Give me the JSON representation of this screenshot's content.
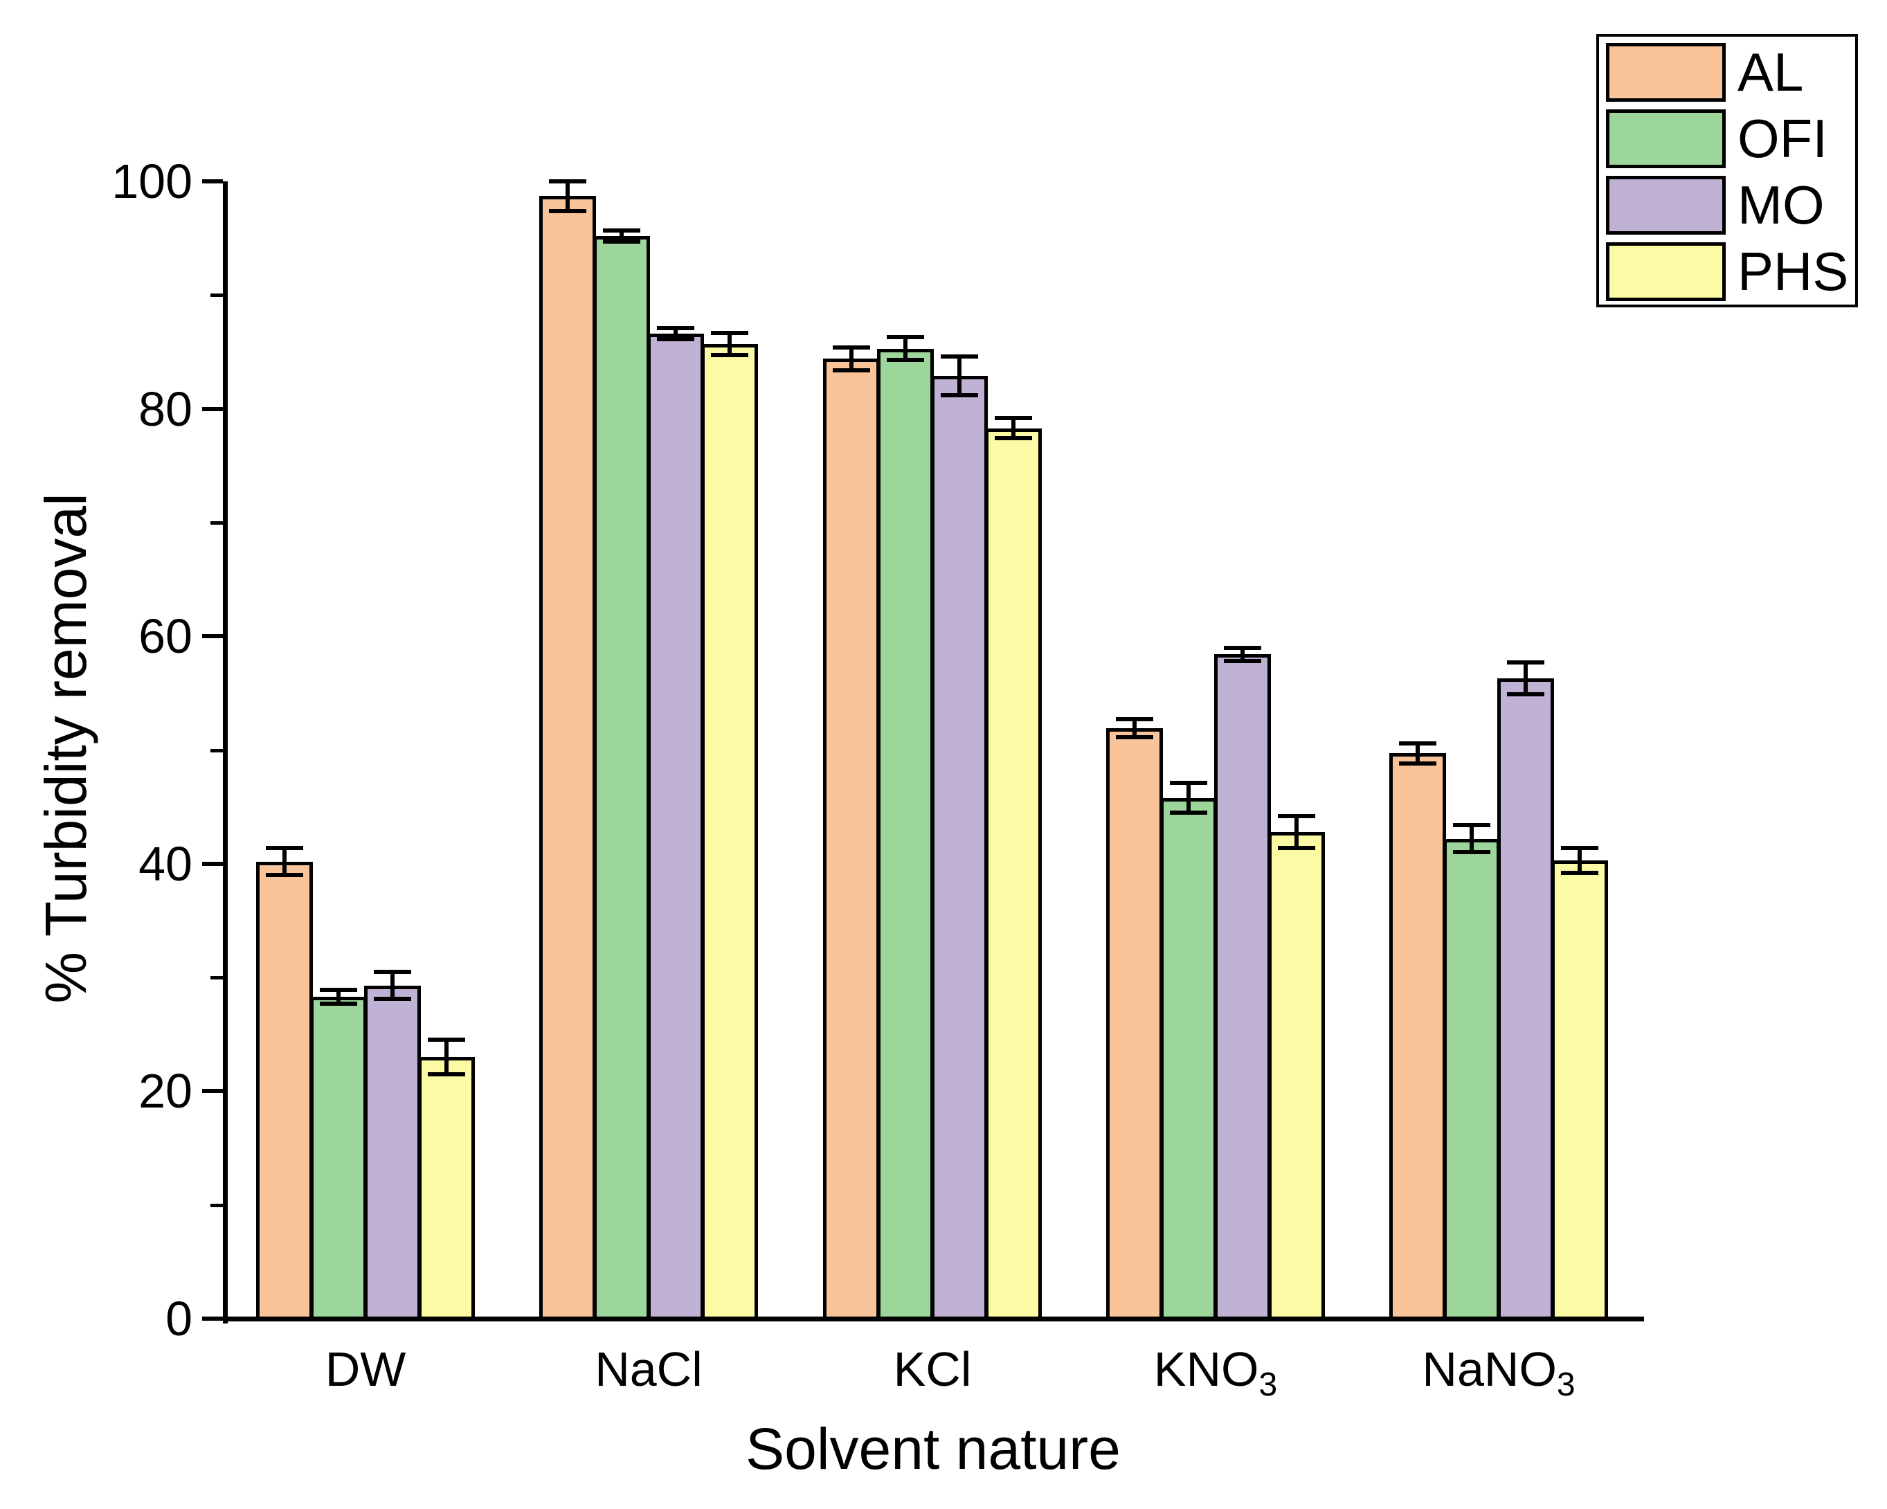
{
  "figure": {
    "background": "#FFFFFF",
    "text_color": "#000000"
  },
  "chart_data": {
    "type": "bar",
    "title": "",
    "xlabel": "Solvent nature",
    "ylabel": "% Turbidity removal",
    "ylim": [
      0,
      100
    ],
    "ytick_major": [
      0,
      20,
      40,
      60,
      80,
      100
    ],
    "ytick_minor": [
      10,
      30,
      50,
      70,
      90
    ],
    "grid": false,
    "error_bars": true,
    "legend_position": "top-right",
    "axis_color": "#000000",
    "bar_border_color": "#000000",
    "categories": [
      "DW",
      "NaCl",
      "KCl",
      "KNO3",
      "NaNO3"
    ],
    "category_rich": [
      {
        "base": "DW",
        "sub": ""
      },
      {
        "base": "NaCl",
        "sub": ""
      },
      {
        "base": "KCl",
        "sub": ""
      },
      {
        "base": "KNO",
        "sub": "3"
      },
      {
        "base": "NaNO",
        "sub": "3"
      }
    ],
    "series": [
      {
        "name": "AL",
        "color": "#FAC49A",
        "values": [
          40.2,
          98.7,
          84.4,
          51.9,
          49.7
        ],
        "errors": [
          1.2,
          1.3,
          1.0,
          0.8,
          0.9
        ]
      },
      {
        "name": "OFI",
        "color": "#9DD69B",
        "values": [
          28.3,
          95.2,
          85.3,
          45.8,
          42.2
        ],
        "errors": [
          0.6,
          0.5,
          1.0,
          1.3,
          1.2
        ]
      },
      {
        "name": "MO",
        "color": "#C0B2D5",
        "values": [
          29.3,
          86.6,
          82.9,
          58.4,
          56.3
        ],
        "errors": [
          1.2,
          0.5,
          1.7,
          0.6,
          1.4
        ]
      },
      {
        "name": "PHS",
        "color": "#FCFAA5",
        "values": [
          23.0,
          85.7,
          78.3,
          42.8,
          40.3
        ],
        "errors": [
          1.5,
          1.0,
          0.9,
          1.4,
          1.1
        ]
      }
    ]
  }
}
